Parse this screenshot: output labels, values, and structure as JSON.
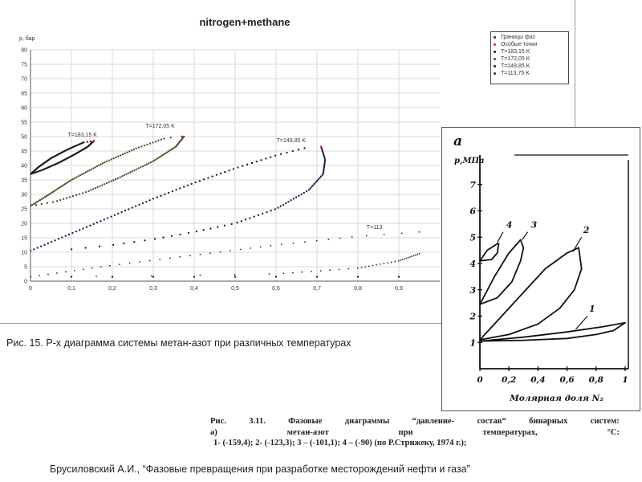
{
  "chart_data": [
    {
      "type": "scatter",
      "title": "nitrogen+methane",
      "ylabel": "p, бар",
      "xlabel": "",
      "xlim": [
        0,
        1
      ],
      "ylim": [
        0,
        80
      ],
      "grid": true,
      "legend_position": "top-right",
      "x_ticks": [
        "0",
        "0,1",
        "0,2",
        "0,3",
        "0,4",
        "0,5",
        "0,6",
        "0,7",
        "0,8",
        "0,9"
      ],
      "y_ticks": [
        "0",
        "5",
        "10",
        "15",
        "20",
        "25",
        "30",
        "35",
        "40",
        "45",
        "50",
        "55",
        "60",
        "65",
        "70",
        "75",
        "80"
      ],
      "legend": [
        "Границы фаз",
        "Особые точки",
        "T=183,15 K",
        "T=172,05 K",
        "T=149,85 K",
        "T=113,75 K"
      ],
      "curve_labels": [
        {
          "text": "T=183,15 K",
          "x": 0.15,
          "y": 50
        },
        {
          "text": "T=172,05 K",
          "x": 0.34,
          "y": 53
        },
        {
          "text": "T=149,85 K",
          "x": 0.66,
          "y": 48
        },
        {
          "text": "T=113",
          "x": 0.88,
          "y": 18
        }
      ],
      "series": [
        {
          "name": "T=183,15 K",
          "color": "#1a1a1a",
          "bubble": [
            [
              0,
              37
            ],
            [
              0.02,
              39.5
            ],
            [
              0.05,
              42.5
            ],
            [
              0.09,
              45.5
            ],
            [
              0.13,
              48
            ],
            [
              0.155,
              48.5
            ]
          ],
          "dew": [
            [
              0,
              37
            ],
            [
              0.03,
              38.5
            ],
            [
              0.07,
              41
            ],
            [
              0.11,
              44
            ],
            [
              0.14,
              46.5
            ],
            [
              0.155,
              48.5
            ]
          ]
        },
        {
          "name": "T=172,05 K",
          "color": "#4a4a24",
          "bubble": [
            [
              0,
              26
            ],
            [
              0.04,
              29.5
            ],
            [
              0.1,
              35
            ],
            [
              0.18,
              41
            ],
            [
              0.26,
              46
            ],
            [
              0.33,
              49.5
            ],
            [
              0.37,
              50
            ]
          ],
          "dew": [
            [
              0,
              26
            ],
            [
              0.06,
              27.5
            ],
            [
              0.14,
              31
            ],
            [
              0.22,
              36
            ],
            [
              0.3,
              41.5
            ],
            [
              0.355,
              46.5
            ],
            [
              0.375,
              50
            ]
          ]
        },
        {
          "name": "T=149,85 K",
          "color": "#15154a",
          "bubble": [
            [
              0,
              10.5
            ],
            [
              0.1,
              16.5
            ],
            [
              0.2,
              22.5
            ],
            [
              0.3,
              28.5
            ],
            [
              0.4,
              34
            ],
            [
              0.5,
              39
            ],
            [
              0.6,
              43.5
            ],
            [
              0.67,
              46
            ],
            [
              0.71,
              46.5
            ]
          ],
          "dew": [
            [
              0,
              10.5
            ],
            [
              0.1,
              11
            ],
            [
              0.2,
              12.5
            ],
            [
              0.3,
              14.5
            ],
            [
              0.4,
              17
            ],
            [
              0.5,
              20
            ],
            [
              0.6,
              25
            ],
            [
              0.68,
              31.5
            ],
            [
              0.715,
              37
            ],
            [
              0.72,
              42
            ],
            [
              0.71,
              46.5
            ]
          ]
        },
        {
          "name": "T=113,75 K",
          "color": "#2a2a2a",
          "bubble": [
            [
              0,
              1.5
            ],
            [
              0.2,
              5.5
            ],
            [
              0.4,
              9
            ],
            [
              0.6,
              12.5
            ],
            [
              0.8,
              15.5
            ],
            [
              0.95,
              17
            ]
          ],
          "dew": [
            [
              0,
              1.5
            ],
            [
              0.2,
              1.7
            ],
            [
              0.4,
              2
            ],
            [
              0.6,
              2.5
            ],
            [
              0.8,
              4.5
            ],
            [
              0.9,
              7
            ],
            [
              0.95,
              9.5
            ]
          ]
        }
      ],
      "phase_boundary": [
        [
          0,
          37
        ],
        [
          0,
          26
        ],
        [
          0,
          10.5
        ],
        [
          0,
          1.5
        ],
        [
          0.1,
          1.5
        ],
        [
          0.2,
          1.5
        ],
        [
          0.3,
          1.5
        ],
        [
          0.4,
          1.5
        ],
        [
          0.5,
          1.5
        ],
        [
          0.6,
          1.5
        ],
        [
          0.7,
          1.5
        ],
        [
          0.8,
          1.5
        ],
        [
          0.9,
          1.5
        ]
      ],
      "special_points": [
        [
          0.155,
          48.5
        ],
        [
          0.37,
          50
        ],
        [
          0.71,
          46.5
        ]
      ]
    },
    {
      "type": "line",
      "title": "",
      "panel_letter": "а",
      "ylabel": "p,МПа",
      "xlabel": "Молярная доля N₂",
      "xlim": [
        0,
        1
      ],
      "ylim": [
        0,
        8
      ],
      "x_ticks": [
        "0",
        "0,2",
        "0,4",
        "0,6",
        "0,8",
        "1"
      ],
      "y_ticks": [
        "1",
        "2",
        "3",
        "4",
        "5",
        "6",
        "7"
      ],
      "series": [
        {
          "name": "1",
          "bubble": [
            [
              0,
              1.05
            ],
            [
              0.3,
              1.2
            ],
            [
              0.6,
              1.4
            ],
            [
              0.85,
              1.6
            ],
            [
              1.0,
              1.75
            ]
          ],
          "dew": [
            [
              0,
              1.05
            ],
            [
              0.3,
              1.08
            ],
            [
              0.6,
              1.15
            ],
            [
              0.8,
              1.3
            ],
            [
              0.92,
              1.45
            ],
            [
              1.0,
              1.75
            ]
          ]
        },
        {
          "name": "2",
          "bubble": [
            [
              0,
              1.1
            ],
            [
              0.15,
              2.0
            ],
            [
              0.3,
              2.9
            ],
            [
              0.45,
              3.8
            ],
            [
              0.6,
              4.4
            ],
            [
              0.68,
              4.6
            ]
          ],
          "dew": [
            [
              0,
              1.1
            ],
            [
              0.2,
              1.3
            ],
            [
              0.4,
              1.7
            ],
            [
              0.55,
              2.3
            ],
            [
              0.65,
              3.0
            ],
            [
              0.7,
              3.8
            ],
            [
              0.68,
              4.6
            ]
          ]
        },
        {
          "name": "3",
          "bubble": [
            [
              0,
              2.45
            ],
            [
              0.1,
              3.5
            ],
            [
              0.2,
              4.4
            ],
            [
              0.28,
              4.9
            ]
          ],
          "dew": [
            [
              0,
              2.45
            ],
            [
              0.12,
              2.7
            ],
            [
              0.22,
              3.3
            ],
            [
              0.28,
              4.1
            ],
            [
              0.3,
              4.6
            ],
            [
              0.28,
              4.9
            ]
          ]
        },
        {
          "name": "4",
          "bubble": [
            [
              0,
              4.1
            ],
            [
              0.05,
              4.5
            ],
            [
              0.12,
              4.75
            ]
          ],
          "dew": [
            [
              0,
              4.1
            ],
            [
              0.08,
              4.15
            ],
            [
              0.12,
              4.4
            ],
            [
              0.13,
              4.75
            ]
          ]
        }
      ],
      "labels": [
        {
          "text": "1",
          "x": 0.74,
          "y": 2.1
        },
        {
          "text": "2",
          "x": 0.7,
          "y": 5.1
        },
        {
          "text": "3",
          "x": 0.34,
          "y": 5.3
        },
        {
          "text": "4",
          "x": 0.17,
          "y": 5.3
        }
      ]
    }
  ],
  "caption_main": "Рис. 15. P-x диаграмма системы метан-азот при различных температурах",
  "caption_book": {
    "line1": [
      "Рис.",
      "3.11.",
      "Фазовые",
      "диаграммы",
      "“давление-",
      "состав“",
      "бинарных",
      "систем:"
    ],
    "line2": [
      "а)",
      "метан-азот",
      "при",
      "температурах,",
      "°С:"
    ],
    "line3": "1- (-159,4); 2- (-123,3); 3 – (-101,1); 4 – (-90) (по Р.Стрижеку, 1974 г.);"
  },
  "caption_source": "Брусиловский А.И., “Фазовые превращения при разработке месторождений нефти и газа”",
  "colors": {
    "phase_boundary": "#222222",
    "special_points": "#d03030",
    "grid": "#d8d8d8"
  }
}
